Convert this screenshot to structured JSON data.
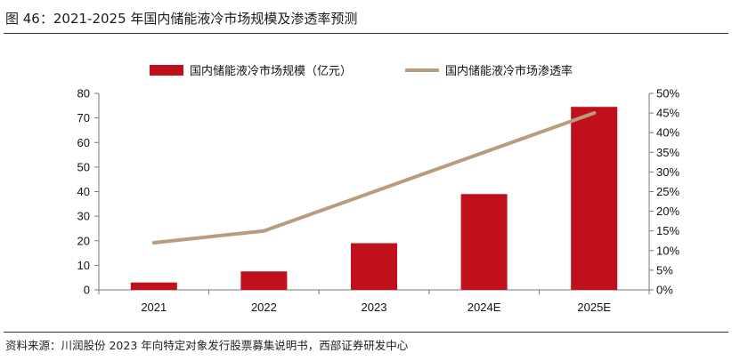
{
  "figure": {
    "title": "图 46：2021-2025 年国内储能液冷市场规模及渗透率预测",
    "source": "资料来源：川润股份 2023 年向特定对象发行股票募集说明书，西部证券研发中心"
  },
  "colors": {
    "bar": "#c0101b",
    "line": "#b89d7c",
    "axis": "#777777"
  },
  "chart_data": {
    "type": "bar",
    "categories": [
      "2021",
      "2022",
      "2023",
      "2024E",
      "2025E"
    ],
    "series": [
      {
        "name": "国内储能液冷市场规模（亿元）",
        "type": "bar",
        "axis": "left",
        "values": [
          3,
          7.5,
          19,
          39,
          74.5
        ]
      },
      {
        "name": "国内储能液冷市场渗透率",
        "type": "line",
        "axis": "right",
        "values": [
          0.12,
          0.15,
          null,
          null,
          0.45
        ]
      }
    ],
    "y_left": {
      "min": 0,
      "max": 80,
      "step": 10,
      "ticks": [
        "0",
        "10",
        "20",
        "30",
        "40",
        "50",
        "60",
        "70",
        "80"
      ]
    },
    "y_right": {
      "min": 0,
      "max": 0.5,
      "step": 0.05,
      "ticks": [
        "0%",
        "5%",
        "10%",
        "15%",
        "20%",
        "25%",
        "30%",
        "35%",
        "40%",
        "45%",
        "50%"
      ]
    },
    "grid": false,
    "legend_position": "top"
  }
}
